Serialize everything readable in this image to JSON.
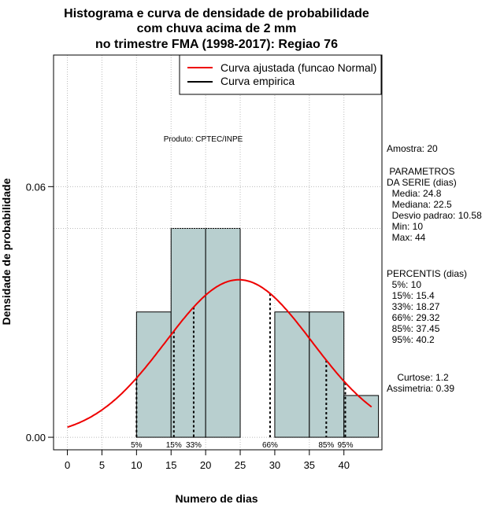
{
  "chart_data": {
    "type": "histogram",
    "title_lines": [
      "Histograma e curva de densidade de probabilidade",
      "com chuva acima de 2 mm",
      "no trimestre FMA (1998-2017): Regiao 76"
    ],
    "xlabel": "Numero de dias",
    "ylabel": "Densidade de probabilidade",
    "xlim": [
      -2,
      45.5
    ],
    "ylim": [
      -0.003,
      0.0915
    ],
    "x_ticks": [
      0,
      5,
      10,
      15,
      20,
      25,
      30,
      35,
      40
    ],
    "y_ticks": [
      0.0,
      0.06
    ],
    "y_tick_labels": [
      "0.00",
      "0.06"
    ],
    "bins": [
      {
        "start": 10,
        "end": 15,
        "density": 0.03
      },
      {
        "start": 15,
        "end": 20,
        "density": 0.05
      },
      {
        "start": 20,
        "end": 25,
        "density": 0.05
      },
      {
        "start": 25,
        "end": 30,
        "density": 0.0
      },
      {
        "start": 30,
        "end": 35,
        "density": 0.03
      },
      {
        "start": 35,
        "end": 40,
        "density": 0.03
      },
      {
        "start": 40,
        "end": 45,
        "density": 0.01
      }
    ],
    "dashed_hline": 0.05,
    "normal_fit": {
      "mean": 24.8,
      "sd": 10.58,
      "x_from": 0,
      "x_to": 44
    },
    "percentiles": [
      {
        "label": "5%",
        "value": 10
      },
      {
        "label": "15%",
        "value": 15.4
      },
      {
        "label": "33%",
        "value": 18.27
      },
      {
        "label": "66%",
        "value": 29.32
      },
      {
        "label": "85%",
        "value": 37.45
      },
      {
        "label": "95%",
        "value": 40.2
      }
    ],
    "legend": [
      {
        "label": "Curva ajustada (funcao Normal)",
        "color": "#ee0000"
      },
      {
        "label": "Curva empirica",
        "color": "#000000"
      }
    ],
    "annotation": "Produto: CPTEC/INPE",
    "colors": {
      "bar_fill": "#b8cfcf",
      "curve": "#ee0000",
      "grid": "#bbbbbb"
    }
  },
  "side_panel": {
    "sample": "Amostra: 20",
    "params_header": [
      " PARAMETROS",
      "DA SERIE (dias)"
    ],
    "params": [
      "  Media: 24.8",
      "  Mediana: 22.5",
      "  Desvio padrao: 10.58",
      "  Min: 10",
      "  Max: 44"
    ],
    "percentis_header": "PERCENTIS (dias)",
    "percentis": [
      "  5%: 10",
      "  15%: 15.4",
      "  33%: 18.27",
      "  66%: 29.32",
      "  85%: 37.45",
      "  95%: 40.2"
    ],
    "shape": [
      "    Curtose: 1.2",
      "Assimetria: 0.39"
    ]
  }
}
